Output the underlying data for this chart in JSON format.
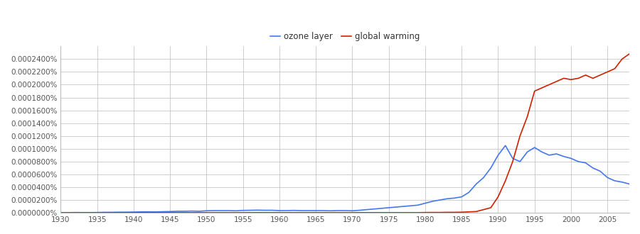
{
  "legend_labels": [
    "ozone layer",
    "global warming"
  ],
  "xlim": [
    1930,
    2008
  ],
  "ylim": [
    0,
    2.6e-06
  ],
  "xticks": [
    1930,
    1935,
    1940,
    1945,
    1950,
    1955,
    1960,
    1965,
    1970,
    1975,
    1980,
    1985,
    1990,
    1995,
    2000,
    2005
  ],
  "ytick_values": [
    0.0,
    2e-07,
    4e-07,
    6e-07,
    8e-07,
    1e-06,
    1.2e-06,
    1.4e-06,
    1.6e-06,
    1.8e-06,
    2e-06,
    2.2e-06,
    2.4e-06
  ],
  "ozone_layer": {
    "years": [
      1930,
      1931,
      1932,
      1933,
      1934,
      1935,
      1936,
      1937,
      1938,
      1939,
      1940,
      1941,
      1942,
      1943,
      1944,
      1945,
      1946,
      1947,
      1948,
      1949,
      1950,
      1951,
      1952,
      1953,
      1954,
      1955,
      1956,
      1957,
      1958,
      1959,
      1960,
      1961,
      1962,
      1963,
      1964,
      1965,
      1966,
      1967,
      1968,
      1969,
      1970,
      1971,
      1972,
      1973,
      1974,
      1975,
      1976,
      1977,
      1978,
      1979,
      1980,
      1981,
      1982,
      1983,
      1984,
      1985,
      1986,
      1987,
      1988,
      1989,
      1990,
      1991,
      1992,
      1993,
      1994,
      1995,
      1996,
      1997,
      1998,
      1999,
      2000,
      2001,
      2002,
      2003,
      2004,
      2005,
      2006,
      2007,
      2008
    ],
    "values": [
      2e-09,
      3e-09,
      5e-09,
      4e-09,
      4e-09,
      5e-09,
      8e-09,
      8e-09,
      1e-08,
      1e-08,
      1.2e-08,
      1.5e-08,
      1.6e-08,
      1.4e-08,
      1.8e-08,
      2e-08,
      2.5e-08,
      2.5e-08,
      2.8e-08,
      2.5e-08,
      3.2e-08,
      3.5e-08,
      3.5e-08,
      3.5e-08,
      3.2e-08,
      3.8e-08,
      4e-08,
      4.2e-08,
      4e-08,
      4e-08,
      3.5e-08,
      3.5e-08,
      3.8e-08,
      3.5e-08,
      3.5e-08,
      3.5e-08,
      3.5e-08,
      3.2e-08,
      3.5e-08,
      3.5e-08,
      3.2e-08,
      4e-08,
      5e-08,
      6e-08,
      7e-08,
      8e-08,
      9e-08,
      1e-07,
      1.1e-07,
      1.2e-07,
      1.5e-07,
      1.8e-07,
      2e-07,
      2.2e-07,
      2.3e-07,
      2.5e-07,
      3.2e-07,
      4.5e-07,
      5.5e-07,
      7e-07,
      9e-07,
      1.05e-06,
      8.5e-07,
      8e-07,
      9.5e-07,
      1.02e-06,
      9.5e-07,
      9e-07,
      9.2e-07,
      8.8e-07,
      8.5e-07,
      8e-07,
      7.8e-07,
      7e-07,
      6.5e-07,
      5.5e-07,
      5e-07,
      4.8e-07,
      4.5e-07
    ]
  },
  "global_warming": {
    "years": [
      1930,
      1931,
      1932,
      1933,
      1934,
      1935,
      1936,
      1937,
      1938,
      1939,
      1940,
      1941,
      1942,
      1943,
      1944,
      1945,
      1946,
      1947,
      1948,
      1949,
      1950,
      1951,
      1952,
      1953,
      1954,
      1955,
      1956,
      1957,
      1958,
      1959,
      1960,
      1961,
      1962,
      1963,
      1964,
      1965,
      1966,
      1967,
      1968,
      1969,
      1970,
      1971,
      1972,
      1973,
      1974,
      1975,
      1976,
      1977,
      1978,
      1979,
      1980,
      1981,
      1982,
      1983,
      1984,
      1985,
      1986,
      1987,
      1988,
      1989,
      1990,
      1991,
      1992,
      1993,
      1994,
      1995,
      1996,
      1997,
      1998,
      1999,
      2000,
      2001,
      2002,
      2003,
      2004,
      2005,
      2006,
      2007,
      2008
    ],
    "values": [
      2e-09,
      2e-09,
      2e-09,
      3e-09,
      3e-09,
      3e-09,
      3e-09,
      3e-09,
      3e-09,
      3e-09,
      3e-09,
      3e-09,
      3e-09,
      3e-09,
      3e-09,
      3e-09,
      3e-09,
      3e-09,
      3e-09,
      3e-09,
      3e-09,
      3e-09,
      3e-09,
      3e-09,
      3e-09,
      3e-09,
      3e-09,
      3e-09,
      3e-09,
      3e-09,
      3e-09,
      3e-09,
      3e-09,
      3e-09,
      3e-09,
      3e-09,
      3e-09,
      3e-09,
      3e-09,
      3e-09,
      3e-09,
      3e-09,
      3e-09,
      3e-09,
      3e-09,
      3e-09,
      3e-09,
      3e-09,
      3e-09,
      3e-09,
      5e-09,
      6e-09,
      6e-09,
      8e-09,
      8e-09,
      1e-08,
      1.5e-08,
      2e-08,
      5e-08,
      8e-08,
      2.5e-07,
      5e-07,
      8e-07,
      1.2e-06,
      1.5e-06,
      1.9e-06,
      1.95e-06,
      2e-06,
      2.05e-06,
      2.1e-06,
      2.08e-06,
      2.1e-06,
      2.15e-06,
      2.1e-06,
      2.15e-06,
      2.2e-06,
      2.25e-06,
      2.4e-06,
      2.48e-06
    ]
  },
  "background_color": "#ffffff",
  "grid_color": "#bbbbbb",
  "line_color_ozone": "#4477ee",
  "line_color_warming": "#cc2200",
  "tick_label_color": "#555555",
  "tick_fontsize": 7.5,
  "legend_fontsize": 8.5
}
